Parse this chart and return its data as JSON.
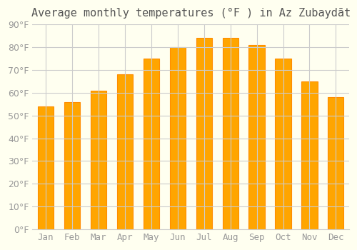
{
  "title": "Average monthly temperatures (°F ) in Az Zubaydāt",
  "months": [
    "Jan",
    "Feb",
    "Mar",
    "Apr",
    "May",
    "Jun",
    "Jul",
    "Aug",
    "Sep",
    "Oct",
    "Nov",
    "Dec"
  ],
  "values": [
    54,
    56,
    61,
    68,
    75,
    80,
    84,
    84,
    81,
    75,
    65,
    58
  ],
  "bar_color": "#FFA500",
  "bar_edge_color": "#FF8C00",
  "background_color": "#FFFFF0",
  "grid_color": "#CCCCCC",
  "ylim": [
    0,
    90
  ],
  "yticks": [
    0,
    10,
    20,
    30,
    40,
    50,
    60,
    70,
    80,
    90
  ],
  "title_fontsize": 11,
  "tick_fontsize": 9
}
